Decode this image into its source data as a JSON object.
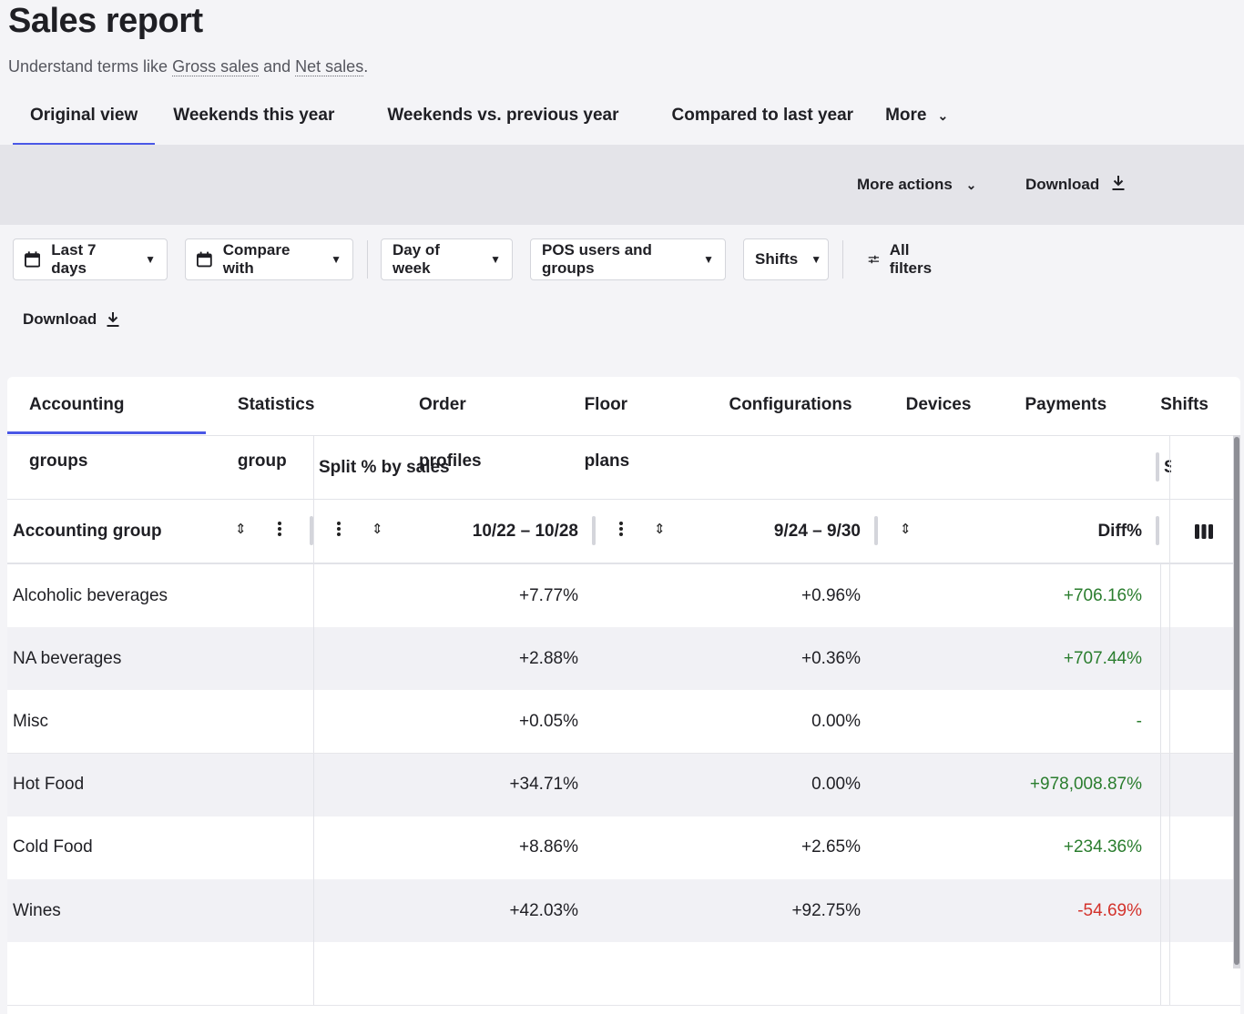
{
  "page": {
    "title": "Sales report",
    "subtitle_prefix": "Understand terms like ",
    "term1": "Gross sales",
    "subtitle_mid": " and ",
    "term2": "Net sales",
    "subtitle_suffix": "."
  },
  "view_tabs": [
    "Original view",
    "Weekends this year",
    "Weekends vs. previous year",
    "Compared to last year",
    "More"
  ],
  "actions": {
    "more_actions": "More actions",
    "download": "Download"
  },
  "filters": {
    "date": "Last 7 days",
    "compare": "Compare with",
    "day_of_week": "Day of week",
    "pos_users": "POS users and groups",
    "shifts": "Shifts",
    "all_filters": "All filters",
    "download": "Download"
  },
  "group_tabs": [
    "Accounting groups",
    "Statistics group",
    "Order profiles",
    "Floor plans",
    "Configurations",
    "Devices",
    "Payments",
    "Shifts"
  ],
  "table": {
    "group_header": "Split % by sales",
    "columns": {
      "name": "Accounting group",
      "current": "10/22 – 10/28",
      "previous": "9/24 – 9/30",
      "diff": "Diff%"
    },
    "rows": [
      {
        "name": "Alcoholic beverages",
        "current": "+7.77%",
        "previous": "+0.96%",
        "diff": "+706.16%",
        "trend": "pos"
      },
      {
        "name": "NA beverages",
        "current": "+2.88%",
        "previous": "+0.36%",
        "diff": "+707.44%",
        "trend": "pos"
      },
      {
        "name": "Misc",
        "current": "+0.05%",
        "previous": "0.00%",
        "diff": "-",
        "trend": "pos"
      },
      {
        "name": "Hot Food",
        "current": "+34.71%",
        "previous": "0.00%",
        "diff": "+978,008.87%",
        "trend": "pos"
      },
      {
        "name": "Cold Food",
        "current": "+8.86%",
        "previous": "+2.65%",
        "diff": "+234.36%",
        "trend": "pos"
      },
      {
        "name": "Wines",
        "current": "+42.03%",
        "previous": "+92.75%",
        "diff": "-54.69%",
        "trend": "neg"
      }
    ]
  },
  "colors": {
    "accent": "#4a58e6",
    "positive": "#2a7d2e",
    "negative": "#d3322b",
    "band": "#e4e4e9",
    "row_alt": "#f1f1f5"
  }
}
